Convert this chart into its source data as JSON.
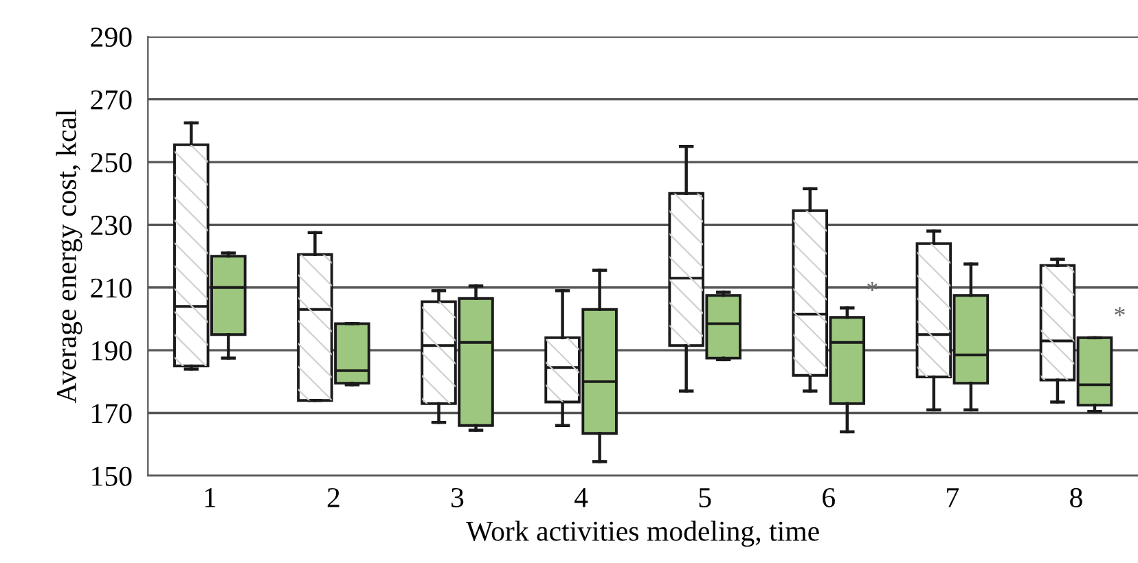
{
  "chart_data": {
    "type": "box",
    "xlabel": "Work activities modeling, time",
    "ylabel": "Average energy cost, kcal",
    "categories": [
      "1",
      "2",
      "3",
      "4",
      "5",
      "6",
      "7",
      "8"
    ],
    "ylim": [
      150,
      290
    ],
    "yticks": [
      150,
      170,
      190,
      210,
      230,
      250,
      270,
      290
    ],
    "grid": "y",
    "legend": false,
    "series": [
      {
        "color": "#ffffff",
        "boxes": [
          {
            "low": 184,
            "q1": 185,
            "median": 204,
            "q3": 255.5,
            "high": 262.5
          },
          {
            "low": 174,
            "q1": 174,
            "median": 203,
            "q3": 220.5,
            "high": 227.5
          },
          {
            "low": 167,
            "q1": 173,
            "median": 191.5,
            "q3": 205.5,
            "high": 209
          },
          {
            "low": 166,
            "q1": 173.5,
            "median": 184.5,
            "q3": 194,
            "high": 209
          },
          {
            "low": 177,
            "q1": 191.5,
            "median": 213,
            "q3": 240,
            "high": 255
          },
          {
            "low": 177,
            "q1": 182,
            "median": 201.5,
            "q3": 234.5,
            "high": 241.5
          },
          {
            "low": 171,
            "q1": 181.5,
            "median": 195,
            "q3": 224,
            "high": 228
          },
          {
            "low": 173.5,
            "q1": 180.5,
            "median": 193,
            "q3": 217,
            "high": 219
          }
        ]
      },
      {
        "color": "#9dc77e",
        "boxes": [
          {
            "low": 187.5,
            "q1": 195,
            "median": 210,
            "q3": 220,
            "high": 221
          },
          {
            "low": 179,
            "q1": 179.5,
            "median": 183.5,
            "q3": 198.5,
            "high": 198.5
          },
          {
            "low": 164.5,
            "q1": 166,
            "median": 192.5,
            "q3": 206.5,
            "high": 210.5
          },
          {
            "low": 154.5,
            "q1": 163.5,
            "median": 180,
            "q3": 203,
            "high": 215.5
          },
          {
            "low": 187,
            "q1": 187.5,
            "median": 198.5,
            "q3": 207.5,
            "high": 208.5
          },
          {
            "low": 164,
            "q1": 173,
            "median": 192.5,
            "q3": 200.5,
            "high": 203.5
          },
          {
            "low": 171,
            "q1": 179.5,
            "median": 188.5,
            "q3": 207.5,
            "high": 217.5
          },
          {
            "low": 170.5,
            "q1": 172.5,
            "median": 179,
            "q3": 194,
            "high": 194
          }
        ]
      }
    ],
    "annotations": [
      {
        "text": "*",
        "x": "6",
        "y": 208.5
      },
      {
        "text": "*",
        "x": "8",
        "y": 200.5
      }
    ]
  }
}
